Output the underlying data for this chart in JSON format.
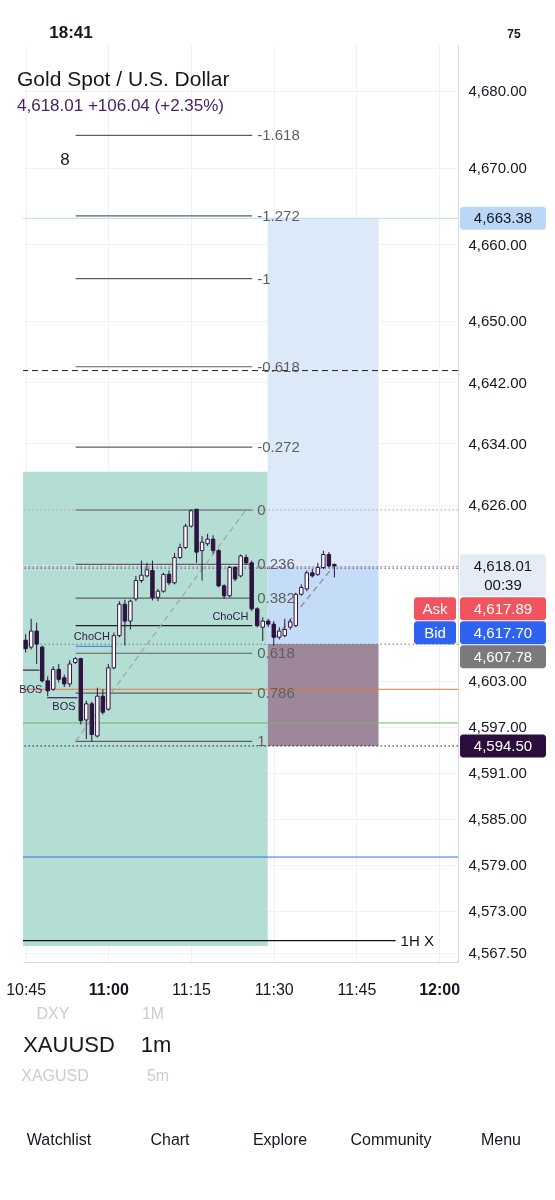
{
  "chart_data": {
    "type": "candlestick",
    "title": "Gold Spot / U.S. Dollar",
    "subtitle": "4,618.01 +106.04 (+2.35%)",
    "x": [
      10.75,
      10.7667,
      10.7833,
      10.8,
      10.8167,
      10.8333,
      10.85,
      10.8667,
      10.8833,
      10.9,
      10.9167,
      10.9333,
      10.95,
      10.9667,
      10.9833,
      11.0,
      11.0167,
      11.0333,
      11.05,
      11.0667,
      11.0833,
      11.1,
      11.1167,
      11.1333,
      11.15,
      11.1667,
      11.1833,
      11.2,
      11.2167,
      11.2333,
      11.25,
      11.2667,
      11.2833,
      11.3,
      11.3167,
      11.3333,
      11.35,
      11.3667,
      11.3833,
      11.4,
      11.4167,
      11.4333,
      11.45,
      11.4667,
      11.4833,
      11.5,
      11.5167,
      11.5333,
      11.55,
      11.5667,
      11.5833,
      11.6,
      11.6167,
      11.6333,
      11.65,
      11.6667,
      11.6833
    ],
    "ohlc": [
      [
        4608.3,
        4609.1,
        4606.7,
        4607.2
      ],
      [
        4607.4,
        4611.1,
        4607.1,
        4609.5
      ],
      [
        4609.5,
        4610.6,
        4605.2,
        4607.8
      ],
      [
        4607.4,
        4607.6,
        4602.8,
        4603.0
      ],
      [
        4603.0,
        4603.6,
        4601.0,
        4601.7
      ],
      [
        4601.9,
        4604.9,
        4601.7,
        4604.5
      ],
      [
        4604.5,
        4605.2,
        4602.8,
        4603.2
      ],
      [
        4603.4,
        4603.8,
        4602.2,
        4602.6
      ],
      [
        4602.6,
        4605.7,
        4602.2,
        4605.2
      ],
      [
        4605.4,
        4606.1,
        4605.2,
        4605.9
      ],
      [
        4605.9,
        4606.0,
        4597.3,
        4597.8
      ],
      [
        4597.9,
        4600.4,
        4595.4,
        4600.0
      ],
      [
        4600.0,
        4600.3,
        4595.1,
        4596.0
      ],
      [
        4595.8,
        4602.1,
        4595.6,
        4601.0
      ],
      [
        4601.0,
        4601.9,
        4598.6,
        4598.9
      ],
      [
        4599.3,
        4605.2,
        4599.1,
        4604.7
      ],
      [
        4604.7,
        4609.3,
        4604.5,
        4608.9
      ],
      [
        4608.9,
        4613.4,
        4608.7,
        4613.0
      ],
      [
        4613.0,
        4613.6,
        4607.6,
        4610.8
      ],
      [
        4610.8,
        4613.6,
        4609.7,
        4613.4
      ],
      [
        4613.7,
        4616.7,
        4613.4,
        4616.1
      ],
      [
        4616.1,
        4618.7,
        4615.8,
        4616.8
      ],
      [
        4616.7,
        4618.4,
        4616.5,
        4617.5
      ],
      [
        4617.4,
        4618.7,
        4613.5,
        4613.9
      ],
      [
        4613.9,
        4615.0,
        4613.4,
        4614.7
      ],
      [
        4614.7,
        4617.1,
        4614.5,
        4616.9
      ],
      [
        4616.9,
        4617.4,
        4615.5,
        4615.8
      ],
      [
        4615.8,
        4619.7,
        4615.6,
        4619.1
      ],
      [
        4619.1,
        4620.9,
        4618.9,
        4620.4
      ],
      [
        4620.4,
        4623.5,
        4620.2,
        4623.2
      ],
      [
        4623.2,
        4625.4,
        4623.0,
        4625.2
      ],
      [
        4625.4,
        4625.4,
        4618.4,
        4619.8
      ],
      [
        4620.0,
        4621.9,
        4616.1,
        4621.1
      ],
      [
        4620.9,
        4622.2,
        4620.6,
        4621.5
      ],
      [
        4621.5,
        4622.0,
        4619.6,
        4620.0
      ],
      [
        4620.0,
        4620.2,
        4615.2,
        4615.4
      ],
      [
        4615.4,
        4615.6,
        4613.7,
        4614.1
      ],
      [
        4614.1,
        4618.0,
        4613.9,
        4617.8
      ],
      [
        4617.8,
        4618.0,
        4616.0,
        4616.3
      ],
      [
        4616.7,
        4619.5,
        4616.5,
        4619.3
      ],
      [
        4619.1,
        4619.5,
        4618.2,
        4618.4
      ],
      [
        4618.4,
        4618.7,
        4612.1,
        4612.4
      ],
      [
        4612.4,
        4612.6,
        4610.0,
        4610.2
      ],
      [
        4610.0,
        4611.3,
        4608.2,
        4610.8
      ],
      [
        4610.8,
        4611.1,
        4610.0,
        4610.4
      ],
      [
        4610.4,
        4610.8,
        4607.6,
        4608.7
      ],
      [
        4608.7,
        4610.0,
        4608.4,
        4609.5
      ],
      [
        4608.9,
        4611.1,
        4608.7,
        4609.7
      ],
      [
        4610.0,
        4611.1,
        4609.7,
        4610.7
      ],
      [
        4610.2,
        4614.5,
        4610.0,
        4614.3
      ],
      [
        4614.3,
        4615.6,
        4614.1,
        4615.2
      ],
      [
        4615.0,
        4617.4,
        4614.7,
        4617.1
      ],
      [
        4617.1,
        4617.6,
        4616.5,
        4616.7
      ],
      [
        4616.9,
        4618.4,
        4616.7,
        4617.8
      ],
      [
        4617.8,
        4620.0,
        4617.6,
        4619.5
      ],
      [
        4619.5,
        4619.8,
        4617.8,
        4618.0
      ],
      [
        4618.2,
        4618.3,
        4616.5,
        4618.01
      ]
    ],
    "color": "#2d1340",
    "colors": [
      "#2d1340",
      "#ffffff",
      "#2d1340",
      "#2d1340",
      "#2d1340",
      "#ffffff",
      "#2d1340",
      "#2d1340",
      "#ffffff",
      "#ffffff",
      "#2d1340",
      "#ffffff",
      "#2d1340",
      "#ffffff",
      "#2d1340",
      "#ffffff",
      "#ffffff",
      "#ffffff",
      "#2d1340",
      "#ffffff",
      "#ffffff",
      "#ffffff",
      "#ffffff",
      "#2d1340",
      "#ffffff",
      "#ffffff",
      "#2d1340",
      "#ffffff",
      "#ffffff",
      "#ffffff",
      "#ffffff",
      "#2d1340",
      "#ffffff",
      "#ffffff",
      "#2d1340",
      "#2d1340",
      "#2d1340",
      "#ffffff",
      "#2d1340",
      "#ffffff",
      "#2d1340",
      "#2d1340",
      "#2d1340",
      "#ffffff",
      "#2d1340",
      "#2d1340",
      "#ffffff",
      "#ffffff",
      "#ffffff",
      "#ffffff",
      "#ffffff",
      "#ffffff",
      "#2d1340",
      "#ffffff",
      "#ffffff",
      "#2d1340",
      "#2d1340"
    ],
    "series": [
      {
        "type": "area",
        "x": [
          10.742,
          11.4817
        ],
        "values": [
          null,
          null
        ],
        "lower": [
          4568.4,
          4568.4
        ],
        "upper": [
          4630.3,
          4630.3
        ],
        "color": "#b4ded4"
      },
      {
        "type": "area",
        "x": [
          11.4817,
          11.8167
        ],
        "values": [
          null,
          null
        ],
        "lower": [
          4618.0,
          4618.0
        ],
        "upper": [
          4663.4,
          4663.4
        ],
        "color": "#dbe9f8"
      },
      {
        "type": "area",
        "x": [
          11.4817,
          11.8167
        ],
        "values": [
          null,
          null
        ],
        "lower": [
          4607.8,
          4607.8
        ],
        "upper": [
          4618.0,
          4618.0
        ],
        "color": "#c5dcf7"
      },
      {
        "type": "area",
        "x": [
          11.4817,
          11.8167
        ],
        "values": [
          null,
          null
        ],
        "lower": [
          4594.5,
          4594.5
        ],
        "upper": [
          4607.8,
          4607.8
        ],
        "color": "#9e879b"
      },
      {
        "type": "line",
        "name": "-1.618",
        "x": [
          10.901,
          11.435
        ],
        "values": [
          4674.2,
          4674.2
        ],
        "color": "#5f5f5f",
        "line_style": "solid"
      },
      {
        "type": "line",
        "name": "-1.272",
        "x": [
          10.901,
          11.435
        ],
        "values": [
          4663.7,
          4663.7
        ],
        "color": "#5f5f5f",
        "line_style": "solid"
      },
      {
        "type": "line",
        "name": "-1",
        "x": [
          10.901,
          11.435
        ],
        "values": [
          4655.5,
          4655.5
        ],
        "color": "#5f5f5f",
        "line_style": "solid"
      },
      {
        "type": "line",
        "name": "-0.618",
        "x": [
          10.901,
          11.435
        ],
        "values": [
          4644.0,
          4644.0
        ],
        "color": "#5f5f5f",
        "line_style": "solid"
      },
      {
        "type": "line",
        "name": "-0.272",
        "x": [
          10.901,
          11.435
        ],
        "values": [
          4633.5,
          4633.5
        ],
        "color": "#5f5f5f",
        "line_style": "solid"
      },
      {
        "type": "line",
        "name": "0",
        "x": [
          10.901,
          11.435
        ],
        "values": [
          4625.3,
          4625.3
        ],
        "color": "#5f5f5f",
        "line_style": "solid"
      },
      {
        "type": "line",
        "name": "0.236",
        "x": [
          10.901,
          11.435
        ],
        "values": [
          4618.2,
          4618.2
        ],
        "color": "#5f5f5f",
        "line_style": "solid"
      },
      {
        "type": "line",
        "name": "0.382",
        "x": [
          10.901,
          11.435
        ],
        "values": [
          4613.8,
          4613.8
        ],
        "color": "#5f5f5f",
        "line_style": "solid"
      },
      {
        "type": "line",
        "x": [
          10.901,
          11.435
        ],
        "values": [
          4610.2,
          4610.2
        ],
        "color": "#222222",
        "line_style": "solid"
      },
      {
        "type": "line",
        "name": "0.618",
        "x": [
          10.901,
          11.435
        ],
        "values": [
          4606.6,
          4606.6
        ],
        "color": "#5f5f5f",
        "line_style": "solid"
      },
      {
        "type": "line",
        "name": "0.786",
        "x": [
          10.901,
          11.435
        ],
        "values": [
          4601.4,
          4601.4
        ],
        "color": "#5f5f5f",
        "line_style": "solid"
      },
      {
        "type": "line",
        "name": "1",
        "x": [
          10.901,
          11.435
        ],
        "values": [
          4595.1,
          4595.1
        ],
        "color": "#5f5f5f",
        "line_style": "solid"
      },
      {
        "type": "line",
        "x": [
          10.901,
          11.415
        ],
        "values": [
          4595.1,
          4625.3
        ],
        "color": "#a3a3a3",
        "line_style": "dashed"
      },
      {
        "type": "line",
        "x": [
          11.505,
          11.68
        ],
        "values": [
          4608.6,
          4617.9
        ],
        "color": "#8a8a8a",
        "line_style": "dashed"
      },
      {
        "type": "line",
        "x": [
          10.901,
          11.0118
        ],
        "values": [
          4607.5,
          4607.5
        ],
        "color": "#4a8ef2",
        "line_style": "solid"
      },
      {
        "type": "line",
        "x": [
          10.742,
          10.7917
        ],
        "values": [
          4604.4,
          4604.4
        ],
        "color": "#3a1f5a",
        "line_style": "solid"
      },
      {
        "type": "line",
        "x": [
          10.815,
          10.907
        ],
        "values": [
          4600.8,
          4600.8
        ],
        "color": "#3a1f5a",
        "line_style": "solid"
      },
      {
        "type": "line",
        "name": "1H X",
        "x": [
          10.742,
          11.8683
        ],
        "values": [
          4569.1,
          4569.1
        ],
        "color": "#111111",
        "line_style": "solid"
      }
    ],
    "ref_lines": [
      {
        "axis": "y",
        "value": 4643.5,
        "color": "#1e1e1e",
        "line_style": "dashed"
      },
      {
        "axis": "y",
        "value": 4625.3,
        "color": "#a0a0a0",
        "line_style": "dotted"
      },
      {
        "axis": "y",
        "value": 4601.9,
        "color": "#e8793a",
        "line_style": "solid"
      },
      {
        "axis": "y",
        "value": 4597.5,
        "color": "#6cb86a",
        "line_style": "solid"
      },
      {
        "axis": "y",
        "value": 4580.0,
        "color": "#2e6cf0",
        "line_style": "solid"
      },
      {
        "axis": "y",
        "value": 4663.38,
        "label": "4,663.38",
        "color": "#bcd6f7",
        "line_style": "solid"
      },
      {
        "axis": "y",
        "value": 4618.01,
        "label": "4,618.01\n00:39",
        "color": "#e4ecf7",
        "line_style": "dashed"
      },
      {
        "axis": "y",
        "value": 4617.89,
        "label": "Ask 4,617.89",
        "color": "#f0545e",
        "line_style": "dotted"
      },
      {
        "axis": "y",
        "value": 4617.7,
        "label": "Bid 4,617.70",
        "color": "#2e63f0",
        "line_style": "dotted"
      },
      {
        "axis": "y",
        "value": 4607.78,
        "label": "4,607.78",
        "color": "#7a7a7a",
        "line_style": "dotted"
      },
      {
        "axis": "y",
        "value": 4594.5,
        "label": "4,594.50",
        "color": "#2b0e3d",
        "line_style": "dotted"
      }
    ],
    "annotations": [
      "18:41",
      "75",
      "8",
      "DXY",
      "1M",
      "XAUUSD",
      "1m",
      "XAGUSD",
      "5m",
      "Watchlist",
      "Chart",
      "Explore",
      "Community",
      "Menu",
      {
        "text": "ChoCH",
        "x": 10.9503,
        "y": 4607.5
      },
      {
        "text": "ChoCH",
        "x": 11.369,
        "y": 4610.2
      },
      {
        "text": "BOS",
        "x": 10.7655,
        "y": 4604.4
      },
      {
        "text": "BOS",
        "x": 10.8657,
        "y": 4600.8
      }
    ],
    "xlim": [
      10.742,
      12.057
    ],
    "xticks": [
      {
        "value": 10.75,
        "label": "10:45"
      },
      {
        "value": 11,
        "label": "11:00"
      },
      {
        "value": 11.25,
        "label": "11:15"
      },
      {
        "value": 11.5,
        "label": "11:30"
      },
      {
        "value": 11.75,
        "label": "11:45"
      },
      {
        "value": 12,
        "label": "12:00"
      }
    ],
    "ylim": [
      4566.3,
      4686.0
    ],
    "yticks": [
      {
        "value": 4680,
        "label": "4,680.00"
      },
      {
        "value": 4670,
        "label": "4,670.00"
      },
      {
        "value": 4660,
        "label": "4,660.00"
      },
      {
        "value": 4650,
        "label": "4,650.00"
      },
      {
        "value": 4642,
        "label": "4,642.00"
      },
      {
        "value": 4634,
        "label": "4,634.00"
      },
      {
        "value": 4626,
        "label": "4,626.00"
      },
      {
        "value": 4603,
        "label": "4,603.00"
      },
      {
        "value": 4597,
        "label": "4,597.00"
      },
      {
        "value": 4591,
        "label": "4,591.00"
      },
      {
        "value": 4585,
        "label": "4,585.00"
      },
      {
        "value": 4579,
        "label": "4,579.00"
      },
      {
        "value": 4573,
        "label": "4,573.00"
      },
      {
        "value": 4567.5,
        "label": "4,567.50"
      }
    ],
    "grid": true
  }
}
